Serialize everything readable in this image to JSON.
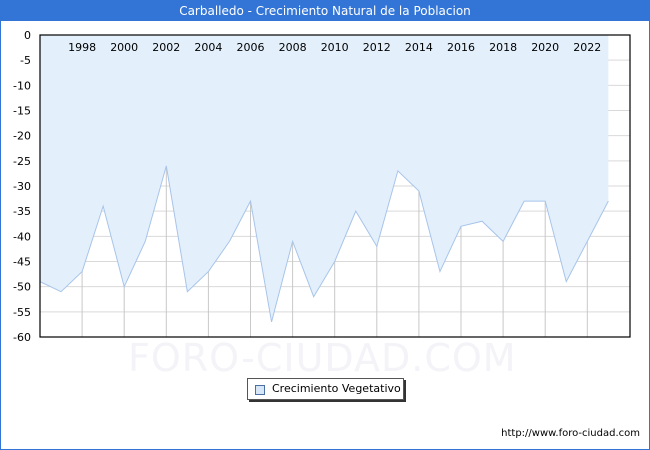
{
  "title": "Carballedo - Crecimiento Natural de la Poblacion",
  "watermark": "FORO-CIUDAD.COM",
  "footer_url": "http://www.foro-ciudad.com",
  "legend": {
    "label": "Crecimiento Vegetativo"
  },
  "colors": {
    "header": "#3375d6",
    "fill": "#e3f0fc",
    "line": "#a8c4ea",
    "grid": "#d9d9d9",
    "vgrid": "#c8c8c8"
  },
  "chart_data": {
    "type": "area",
    "title": "Carballedo - Crecimiento Natural de la Poblacion",
    "xlabel": "",
    "ylabel": "",
    "ylim": [
      -60,
      0
    ],
    "yticks": [
      0,
      -5,
      -10,
      -15,
      -20,
      -25,
      -30,
      -35,
      -40,
      -45,
      -50,
      -55,
      -60
    ],
    "xtick_labels": [
      "1998",
      "2000",
      "2002",
      "2004",
      "2006",
      "2008",
      "2010",
      "2012",
      "2014",
      "2016",
      "2018",
      "2020",
      "2022"
    ],
    "grid": true,
    "legend_position": "bottom",
    "x": [
      1996,
      1997,
      1998,
      1999,
      2000,
      2001,
      2002,
      2003,
      2004,
      2005,
      2006,
      2007,
      2008,
      2009,
      2010,
      2011,
      2012,
      2013,
      2014,
      2015,
      2016,
      2017,
      2018,
      2019,
      2020,
      2021,
      2022,
      2023
    ],
    "series": [
      {
        "name": "Crecimiento Vegetativo",
        "values": [
          -49,
          -51,
          -47,
          -34,
          -50,
          -41,
          -26,
          -51,
          -47,
          -41,
          -33,
          -57,
          -41,
          -52,
          -45,
          -35,
          -42,
          -27,
          -31,
          -47,
          -38,
          -37,
          -41,
          -33,
          -33,
          -49,
          -41,
          -33
        ]
      }
    ]
  }
}
